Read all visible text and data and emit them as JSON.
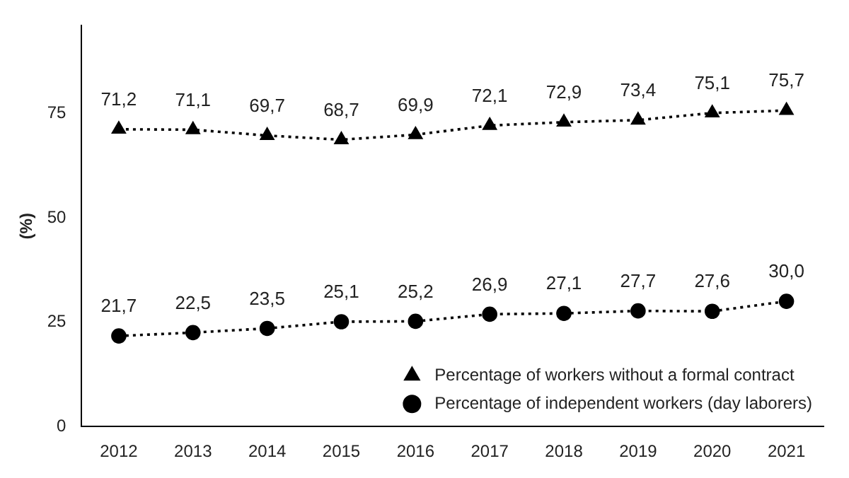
{
  "chart_data": {
    "type": "line",
    "ylabel": "(%)",
    "categories": [
      "2012",
      "2013",
      "2014",
      "2015",
      "2016",
      "2017",
      "2018",
      "2019",
      "2020",
      "2021"
    ],
    "series": [
      {
        "name": "Percentage of workers without a formal contract",
        "color": "#000000",
        "marker": "triangle",
        "values": [
          71.2,
          71.1,
          69.7,
          68.7,
          69.9,
          72.1,
          72.9,
          73.4,
          75.1,
          75.7
        ],
        "value_labels": [
          "71,2",
          "71,1",
          "69,7",
          "68,7",
          "69,9",
          "72,1",
          "72,9",
          "73,4",
          "75,1",
          "75,7"
        ]
      },
      {
        "name": "Percentage of independent workers (day laborers)",
        "color": "#000000",
        "marker": "circle",
        "values": [
          21.7,
          22.5,
          23.5,
          25.1,
          25.2,
          26.9,
          27.1,
          27.7,
          27.6,
          30.0
        ],
        "value_labels": [
          "21,7",
          "22,5",
          "23,5",
          "25,1",
          "25,2",
          "26,9",
          "27,1",
          "27,7",
          "27,6",
          "30,0"
        ]
      }
    ],
    "ylim": [
      0,
      96
    ],
    "yticks": [
      0,
      25,
      50,
      75
    ],
    "grid": false,
    "legend": "bottom right",
    "line_style": "dotted"
  }
}
